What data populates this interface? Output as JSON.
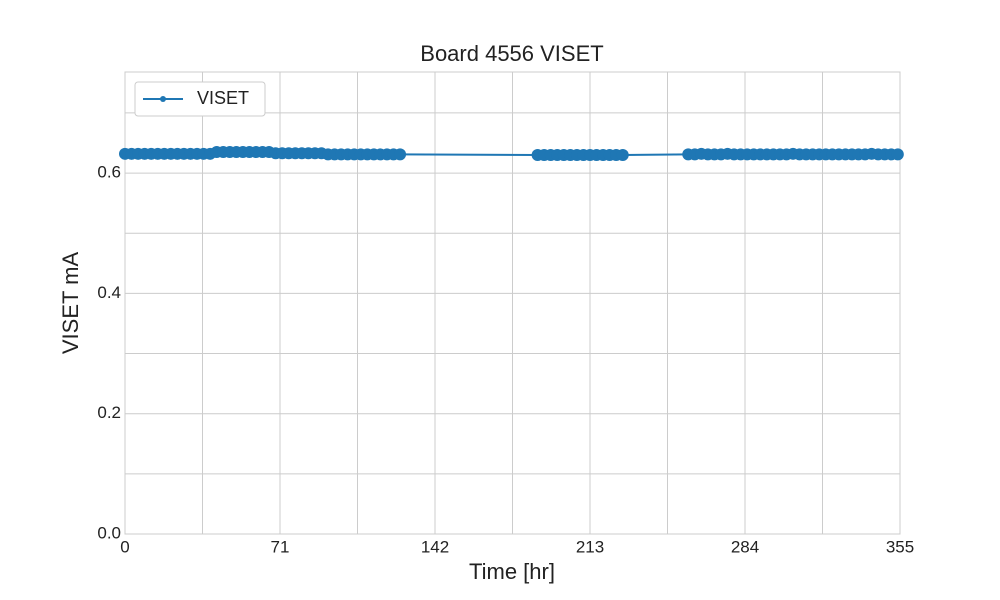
{
  "chart_data": {
    "type": "line",
    "title": "Board 4556 VISET",
    "x_label": "Time [hr]",
    "y_label": "VISET mA",
    "x": [
      0,
      3,
      6,
      9,
      12,
      15,
      18,
      21,
      24,
      27,
      30,
      33,
      36,
      39,
      42,
      45,
      48,
      51,
      54,
      57,
      60,
      63,
      66,
      69,
      72,
      75,
      78,
      81,
      84,
      87,
      90,
      93,
      96,
      99,
      102,
      105,
      108,
      111,
      114,
      117,
      120,
      123,
      126,
      189,
      192,
      195,
      198,
      201,
      204,
      207,
      210,
      213,
      216,
      219,
      222,
      225,
      228,
      258,
      261,
      264,
      267,
      270,
      273,
      276,
      279,
      282,
      285,
      288,
      291,
      294,
      297,
      300,
      303,
      306,
      309,
      312,
      315,
      318,
      321,
      324,
      327,
      330,
      333,
      336,
      339,
      342,
      345,
      348,
      351,
      354
    ],
    "series": [
      {
        "name": "VISET",
        "color": "#1f77b4",
        "values": [
          0.632,
          0.632,
          0.632,
          0.632,
          0.632,
          0.632,
          0.632,
          0.632,
          0.632,
          0.632,
          0.632,
          0.632,
          0.632,
          0.632,
          0.635,
          0.635,
          0.635,
          0.635,
          0.635,
          0.635,
          0.635,
          0.635,
          0.635,
          0.633,
          0.633,
          0.633,
          0.633,
          0.633,
          0.633,
          0.633,
          0.633,
          0.631,
          0.631,
          0.631,
          0.631,
          0.631,
          0.631,
          0.631,
          0.631,
          0.631,
          0.631,
          0.631,
          0.631,
          0.63,
          0.63,
          0.63,
          0.63,
          0.63,
          0.63,
          0.63,
          0.63,
          0.63,
          0.63,
          0.63,
          0.63,
          0.63,
          0.63,
          0.631,
          0.631,
          0.632,
          0.631,
          0.631,
          0.631,
          0.632,
          0.631,
          0.631,
          0.631,
          0.631,
          0.631,
          0.631,
          0.631,
          0.631,
          0.631,
          0.632,
          0.631,
          0.631,
          0.631,
          0.631,
          0.631,
          0.631,
          0.631,
          0.631,
          0.631,
          0.631,
          0.631,
          0.632,
          0.631,
          0.631,
          0.631,
          0.631
        ]
      }
    ],
    "xlim": [
      0,
      355
    ],
    "xticks": [
      0,
      71,
      142,
      213,
      284,
      355
    ],
    "x_minor_grid": [
      35.5,
      106.5,
      177.5,
      248.5,
      319.5
    ],
    "ylim": [
      0,
      0.768
    ],
    "yticks": [
      {
        "value": 0,
        "label": "0.0"
      },
      0.2,
      0.4,
      0.6
    ],
    "y_minor_grid": [
      0.1,
      0.3,
      0.5,
      0.7
    ],
    "grid": true,
    "legend": "upper left"
  }
}
